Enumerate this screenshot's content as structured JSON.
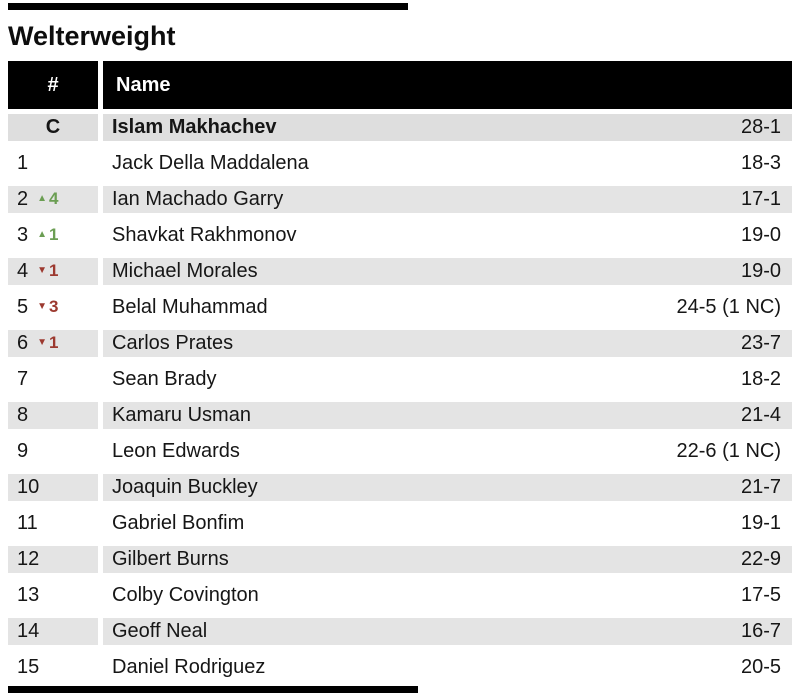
{
  "title": "Welterweight",
  "table": {
    "headers": {
      "rank": "#",
      "name": "Name"
    },
    "colors": {
      "up": "#6b9e53",
      "down": "#9c392f",
      "row_shade_bg": "#e4e4e4",
      "champion_row_bg": "#dedede",
      "header_bg": "#000000",
      "header_text": "#ffffff"
    },
    "up_icon": "▲",
    "down_icon": "▼",
    "rows": [
      {
        "rank": "C",
        "champion": true,
        "name": "Islam Makhachev",
        "record": "28-1"
      },
      {
        "rank": "1",
        "name": "Jack Della Maddalena",
        "record": "18-3"
      },
      {
        "rank": "2",
        "move": "up",
        "move_value": "4",
        "name": "Ian Machado Garry",
        "record": "17-1"
      },
      {
        "rank": "3",
        "move": "up",
        "move_value": "1",
        "name": "Shavkat Rakhmonov",
        "record": "19-0"
      },
      {
        "rank": "4",
        "move": "down",
        "move_value": "1",
        "name": "Michael Morales",
        "record": "19-0"
      },
      {
        "rank": "5",
        "move": "down",
        "move_value": "3",
        "name": "Belal Muhammad",
        "record": "24-5 (1 NC)"
      },
      {
        "rank": "6",
        "move": "down",
        "move_value": "1",
        "name": "Carlos Prates",
        "record": "23-7"
      },
      {
        "rank": "7",
        "name": "Sean Brady",
        "record": "18-2"
      },
      {
        "rank": "8",
        "name": "Kamaru Usman",
        "record": "21-4"
      },
      {
        "rank": "9",
        "name": "Leon Edwards",
        "record": "22-6 (1 NC)"
      },
      {
        "rank": "10",
        "name": "Joaquin Buckley",
        "record": "21-7"
      },
      {
        "rank": "11",
        "name": "Gabriel Bonfim",
        "record": "19-1"
      },
      {
        "rank": "12",
        "name": "Gilbert Burns",
        "record": "22-9"
      },
      {
        "rank": "13",
        "name": "Colby Covington",
        "record": "17-5"
      },
      {
        "rank": "14",
        "name": "Geoff Neal",
        "record": "16-7"
      },
      {
        "rank": "15",
        "name": "Daniel Rodriguez",
        "record": "20-5"
      }
    ]
  }
}
